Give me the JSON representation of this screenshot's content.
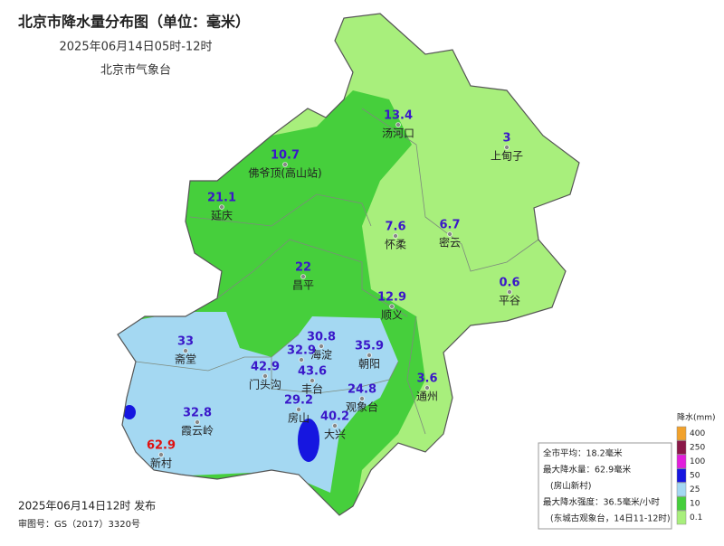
{
  "header": {
    "title": "北京市降水量分布图（单位：毫米）",
    "subtitle": "2025年06月14日05时-12时",
    "source": "北京市气象台"
  },
  "stations": [
    {
      "name": "汤河口",
      "value": 13.4,
      "color": "#3a17c9"
    },
    {
      "name": "上甸子",
      "value": 3,
      "color": "#3a17c9"
    },
    {
      "name": "佛爷顶(高山站)",
      "value": 10.7,
      "color": "#3a17c9"
    },
    {
      "name": "延庆",
      "value": 21.1,
      "color": "#3a17c9"
    },
    {
      "name": "怀柔",
      "value": 7.6,
      "color": "#3a17c9"
    },
    {
      "name": "密云",
      "value": 6.7,
      "color": "#3a17c9"
    },
    {
      "name": "昌平",
      "value": 22,
      "color": "#3a17c9"
    },
    {
      "name": "平谷",
      "value": 0.6,
      "color": "#3a17c9"
    },
    {
      "name": "顺义",
      "value": 12.9,
      "color": "#3a17c9"
    },
    {
      "name": "斋堂",
      "value": 33,
      "color": "#3a17c9"
    },
    {
      "name": "海淀",
      "value": 30.8,
      "color": "#3a17c9"
    },
    {
      "name": null,
      "value": 32.9,
      "color": "#3a17c9"
    },
    {
      "name": "朝阳",
      "value": 35.9,
      "color": "#3a17c9"
    },
    {
      "name": "门头沟",
      "value": 42.9,
      "color": "#3a17c9"
    },
    {
      "name": "丰台",
      "value": 43.6,
      "color": "#3a17c9"
    },
    {
      "name": "通州",
      "value": 3.6,
      "color": "#3a17c9"
    },
    {
      "name": "观象台",
      "value": 24.8,
      "color": "#3a17c9"
    },
    {
      "name": "房山",
      "value": 29.2,
      "color": "#3a17c9"
    },
    {
      "name": "霞云岭",
      "value": 32.8,
      "color": "#3a17c9"
    },
    {
      "name": "大兴",
      "value": 40.2,
      "color": "#3a17c9"
    },
    {
      "name": "新村",
      "value": 62.9,
      "color": "#e01010"
    }
  ],
  "legend": {
    "title": "降水(mm)",
    "levels": [
      {
        "value": 400,
        "color": "#f2a22c"
      },
      {
        "value": 250,
        "color": "#8a1848"
      },
      {
        "value": 100,
        "color": "#e21fdc"
      },
      {
        "value": 50,
        "color": "#1616e0"
      },
      {
        "value": 25,
        "color": "#a4d8f2"
      },
      {
        "value": 10,
        "color": "#46cf3c"
      },
      {
        "value": 0.1,
        "color": "#a8ef7c"
      }
    ]
  },
  "summary": {
    "lines": [
      "全市平均：18.2毫米",
      "最大降水量：62.9毫米",
      "(房山新村)",
      "最大降水强度：36.5毫米/小时",
      "(东城古观象台，14日11-12时)"
    ]
  },
  "footer": {
    "issued": "2025年06月14日12时 发布",
    "approval": "审图号：GS（2017）3320号"
  }
}
